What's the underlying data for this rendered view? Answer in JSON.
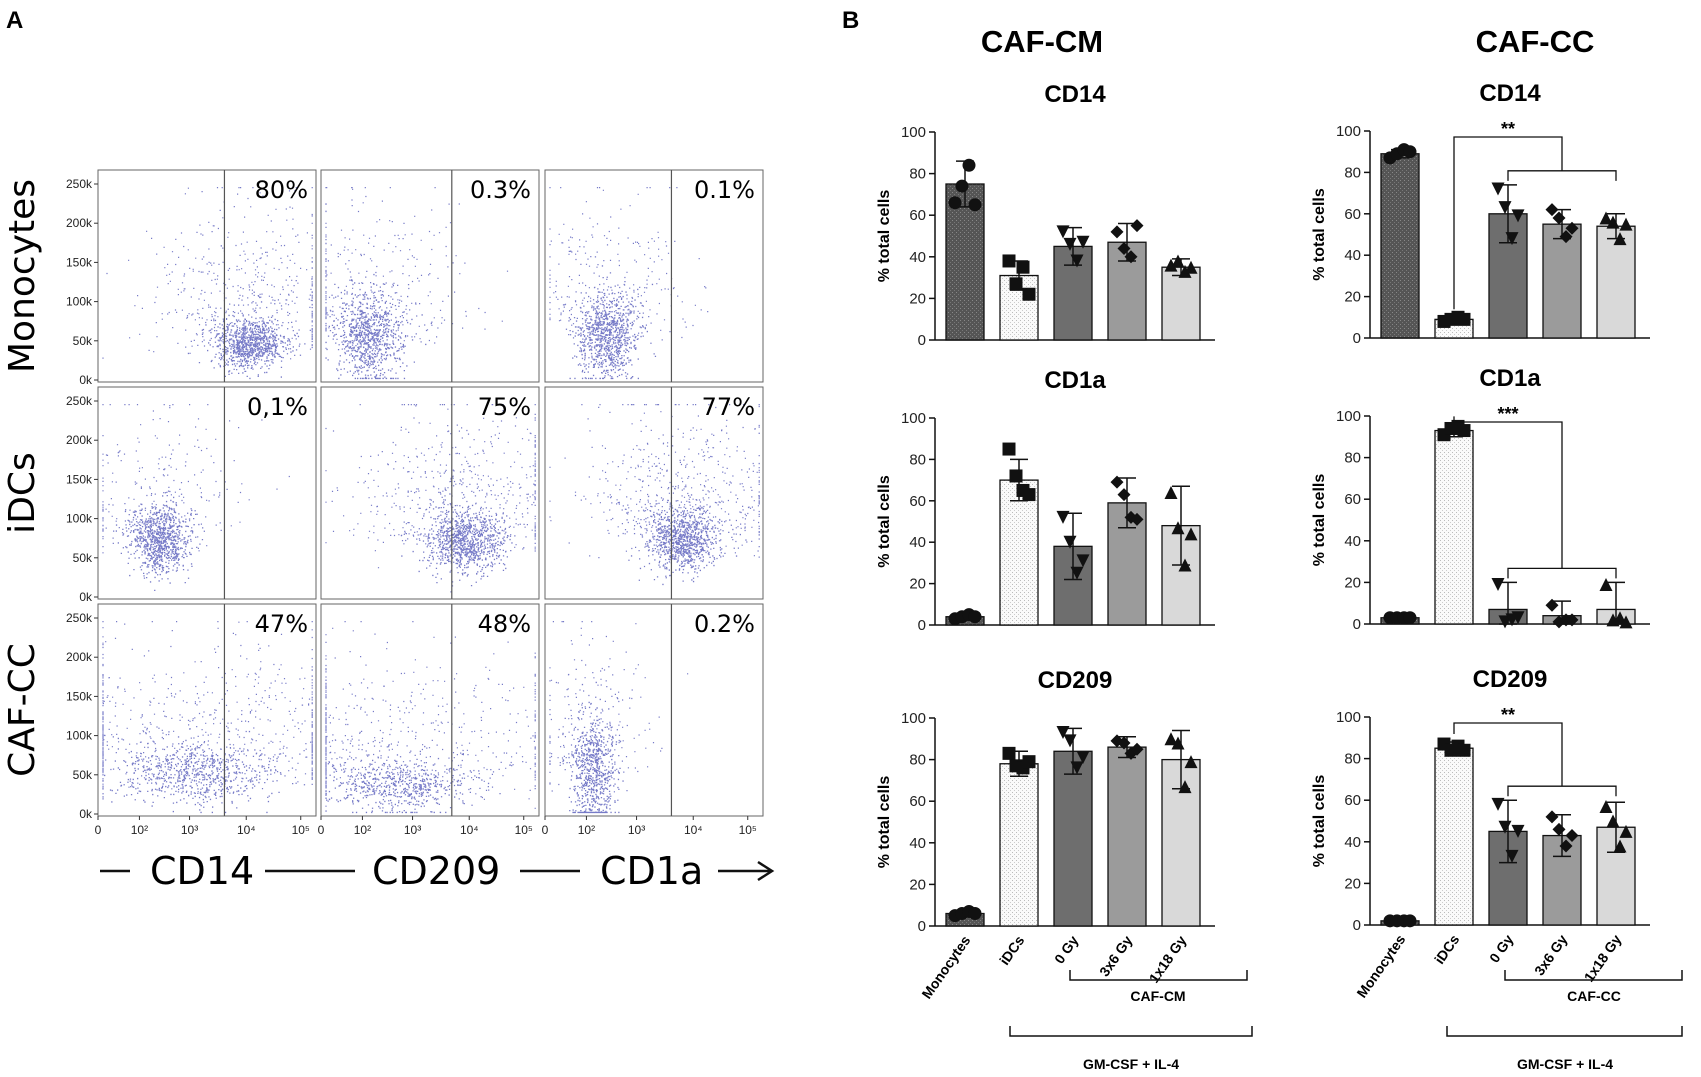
{
  "panel_a_label": "A",
  "panel_b_label": "B",
  "colors": {
    "dot": "#4a4fb5",
    "axis": "#222222",
    "gate": "#555555"
  },
  "facs": {
    "rows": [
      "Monocytes",
      "iDCs",
      "CAF-CC"
    ],
    "y_ticks": [
      "250k",
      "200k",
      "150k",
      "100k",
      "50k",
      "0k"
    ],
    "x_ticks": [
      "0",
      "10²",
      "10³",
      "10⁴",
      "10⁵"
    ],
    "x_markers": [
      "CD14",
      "CD209",
      "CD1a"
    ],
    "percentages": [
      [
        "80%",
        "0.3%",
        "0.1%"
      ],
      [
        "0,1%",
        "75%",
        "77%"
      ],
      [
        "47%",
        "48%",
        "0.2%"
      ]
    ]
  },
  "chart_data": [
    {
      "type": "bar",
      "title": "CD14",
      "column_title": "CAF-CM",
      "ylabel": "% total cells",
      "ylim": [
        0,
        100
      ],
      "y_ticks": [
        "0",
        "20",
        "40",
        "60",
        "80",
        "100"
      ],
      "categories": [
        "Monocytes",
        "iDCs",
        "0 Gy",
        "3x6 Gy",
        "1x18 Gy"
      ],
      "values": [
        75,
        31,
        45,
        47,
        35
      ],
      "errors": [
        11,
        7,
        9,
        9,
        4
      ],
      "points": [
        [
          66,
          74,
          84,
          65
        ],
        [
          38,
          27,
          35,
          22
        ],
        [
          52,
          46,
          38,
          47
        ],
        [
          52,
          44,
          40,
          55
        ],
        [
          36,
          38,
          33,
          35
        ]
      ],
      "markers": [
        "circle",
        "square",
        "triangle-down",
        "diamond",
        "triangle-up"
      ],
      "significance": []
    },
    {
      "type": "bar",
      "title": "CD14",
      "column_title": "CAF-CC",
      "ylabel": "% total cells",
      "ylim": [
        0,
        100
      ],
      "y_ticks": [
        "0",
        "20",
        "40",
        "60",
        "80",
        "100"
      ],
      "categories": [
        "Monocytes",
        "iDCs",
        "0 Gy",
        "3x6 Gy",
        "1x18 Gy"
      ],
      "values": [
        89,
        9,
        60,
        55,
        54
      ],
      "errors": [
        2,
        1,
        14,
        7,
        6
      ],
      "points": [
        [
          87,
          89,
          91,
          90
        ],
        [
          8,
          9,
          10,
          9
        ],
        [
          72,
          63,
          48,
          59
        ],
        [
          62,
          58,
          49,
          53
        ],
        [
          58,
          56,
          48,
          55
        ]
      ],
      "markers": [
        "circle",
        "square",
        "triangle-down",
        "diamond",
        "triangle-up"
      ],
      "significance": [
        {
          "label": "**",
          "from": 1,
          "to": [
            2,
            4
          ]
        }
      ]
    },
    {
      "type": "bar",
      "title": "CD1a",
      "column_title": "",
      "ylabel": "% total cells",
      "ylim": [
        0,
        100
      ],
      "y_ticks": [
        "0",
        "20",
        "40",
        "60",
        "80",
        "100"
      ],
      "categories": [
        "Monocytes",
        "iDCs",
        "0 Gy",
        "3x6 Gy",
        "1x18 Gy"
      ],
      "values": [
        4,
        70,
        38,
        59,
        48
      ],
      "errors": [
        1,
        10,
        16,
        12,
        19
      ],
      "points": [
        [
          3,
          4,
          5,
          4
        ],
        [
          85,
          72,
          65,
          63
        ],
        [
          52,
          40,
          25,
          31
        ],
        [
          69,
          63,
          52,
          51
        ],
        [
          64,
          47,
          29,
          44
        ]
      ],
      "markers": [
        "circle",
        "square",
        "triangle-down",
        "diamond",
        "triangle-up"
      ],
      "significance": []
    },
    {
      "type": "bar",
      "title": "CD1a",
      "column_title": "",
      "ylabel": "% total cells",
      "ylim": [
        0,
        100
      ],
      "y_ticks": [
        "0",
        "20",
        "40",
        "60",
        "80",
        "100"
      ],
      "categories": [
        "Monocytes",
        "iDCs",
        "0 Gy",
        "3x6 Gy",
        "1x18 Gy"
      ],
      "values": [
        3,
        93,
        7,
        4,
        7
      ],
      "errors": [
        1,
        3,
        13,
        7,
        13
      ],
      "points": [
        [
          3,
          3,
          3,
          3
        ],
        [
          91,
          94,
          95,
          93
        ],
        [
          19,
          1,
          2,
          3
        ],
        [
          9,
          1,
          2,
          2
        ],
        [
          19,
          2,
          3,
          1
        ]
      ],
      "markers": [
        "circle",
        "square",
        "triangle-down",
        "diamond",
        "triangle-up"
      ],
      "significance": [
        {
          "label": "***",
          "from": 1,
          "to": [
            2,
            4
          ]
        }
      ]
    },
    {
      "type": "bar",
      "title": "CD209",
      "column_title": "",
      "ylabel": "% total cells",
      "ylim": [
        0,
        100
      ],
      "y_ticks": [
        "0",
        "20",
        "40",
        "60",
        "80",
        "100"
      ],
      "categories": [
        "Monocytes",
        "iDCs",
        "0 Gy",
        "3x6 Gy",
        "1x18 Gy"
      ],
      "values": [
        6,
        78,
        84,
        86,
        80
      ],
      "errors": [
        1,
        6,
        11,
        5,
        14
      ],
      "points": [
        [
          5,
          6,
          7,
          6
        ],
        [
          83,
          77,
          76,
          79
        ],
        [
          93,
          89,
          76,
          81
        ],
        [
          89,
          88,
          83,
          85
        ],
        [
          90,
          88,
          67,
          79
        ]
      ],
      "markers": [
        "circle",
        "square",
        "triangle-down",
        "diamond",
        "triangle-up"
      ],
      "significance": []
    },
    {
      "type": "bar",
      "title": "CD209",
      "column_title": "",
      "ylabel": "% total cells",
      "ylim": [
        0,
        100
      ],
      "y_ticks": [
        "0",
        "20",
        "40",
        "60",
        "80",
        "100"
      ],
      "categories": [
        "Monocytes",
        "iDCs",
        "0 Gy",
        "3x6 Gy",
        "1x18 Gy"
      ],
      "values": [
        2,
        85,
        45,
        43,
        47
      ],
      "errors": [
        1,
        3,
        15,
        10,
        12
      ],
      "points": [
        [
          2,
          2,
          2,
          2
        ],
        [
          87,
          84,
          86,
          84
        ],
        [
          58,
          47,
          33,
          45
        ],
        [
          52,
          46,
          38,
          43
        ],
        [
          57,
          50,
          38,
          45
        ]
      ],
      "markers": [
        "circle",
        "square",
        "triangle-down",
        "diamond",
        "triangle-up"
      ],
      "significance": [
        {
          "label": "**",
          "from": 1,
          "to": [
            2,
            4
          ]
        }
      ]
    }
  ],
  "groups": {
    "left_inner": "CAF-CM",
    "right_inner": "CAF-CC",
    "outer": "GM-CSF + IL-4"
  }
}
